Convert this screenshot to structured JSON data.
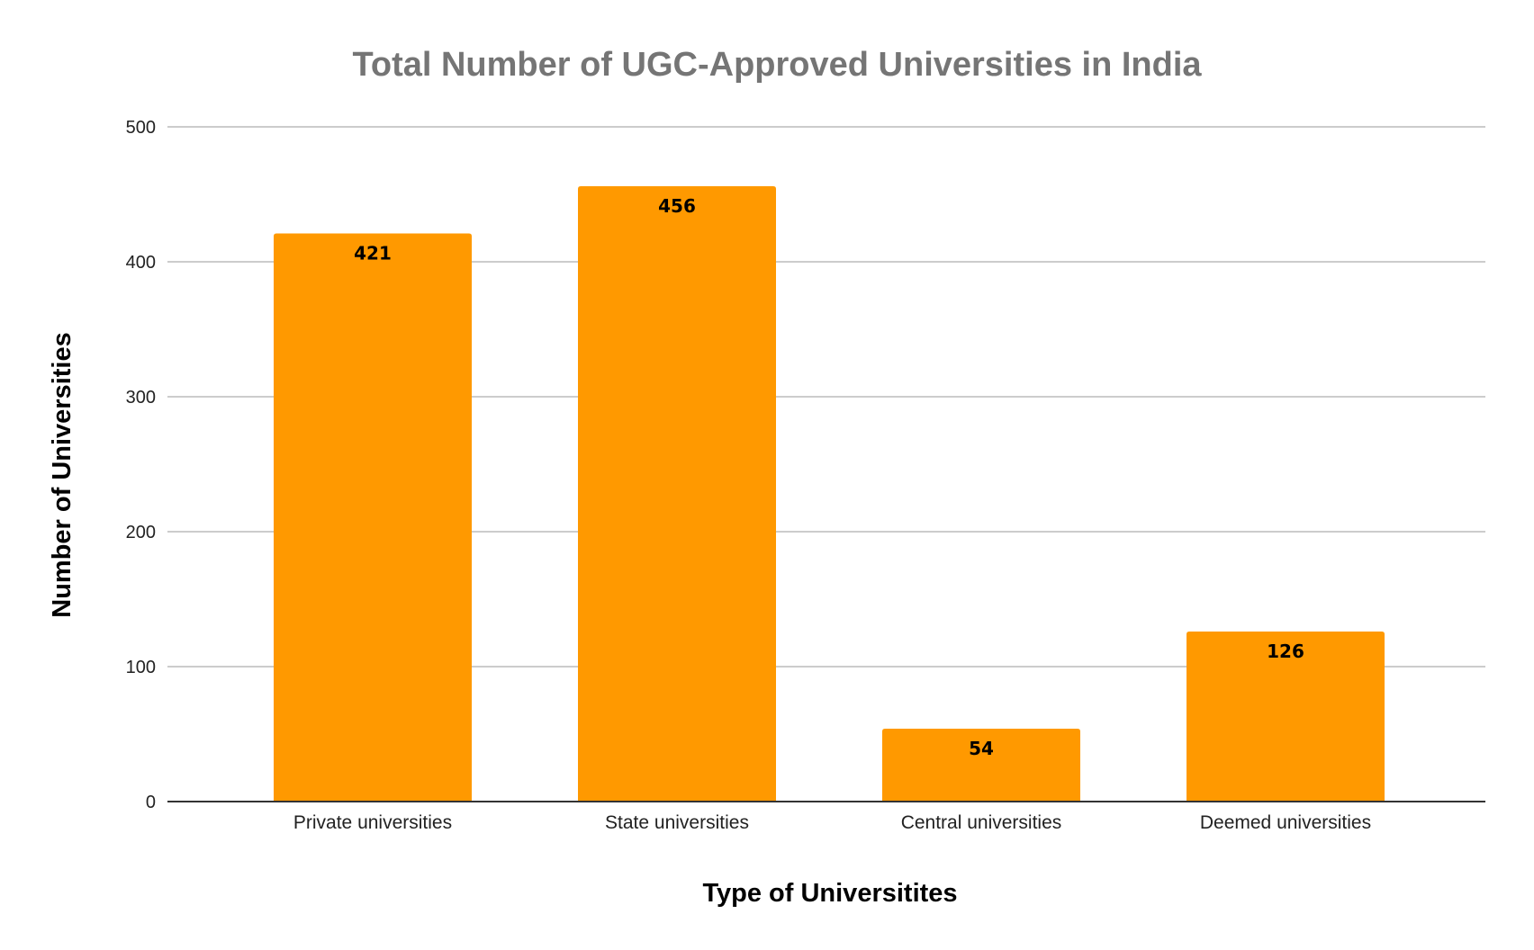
{
  "chart_data": {
    "type": "bar",
    "title": "Total Number of UGC-Approved Universities in India",
    "xlabel": "Type of Universitites",
    "ylabel": "Number of Universities",
    "categories": [
      "Private universities",
      "State universities",
      "Central universities",
      "Deemed universities"
    ],
    "values": [
      421,
      456,
      54,
      126
    ],
    "data_labels": [
      "421",
      "456",
      "54",
      "126"
    ],
    "ylim": [
      0,
      500
    ],
    "yticks": [
      "0",
      "100",
      "200",
      "300",
      "400",
      "500"
    ],
    "grid": true,
    "legend": "none",
    "bar_color": "#FF9900"
  }
}
